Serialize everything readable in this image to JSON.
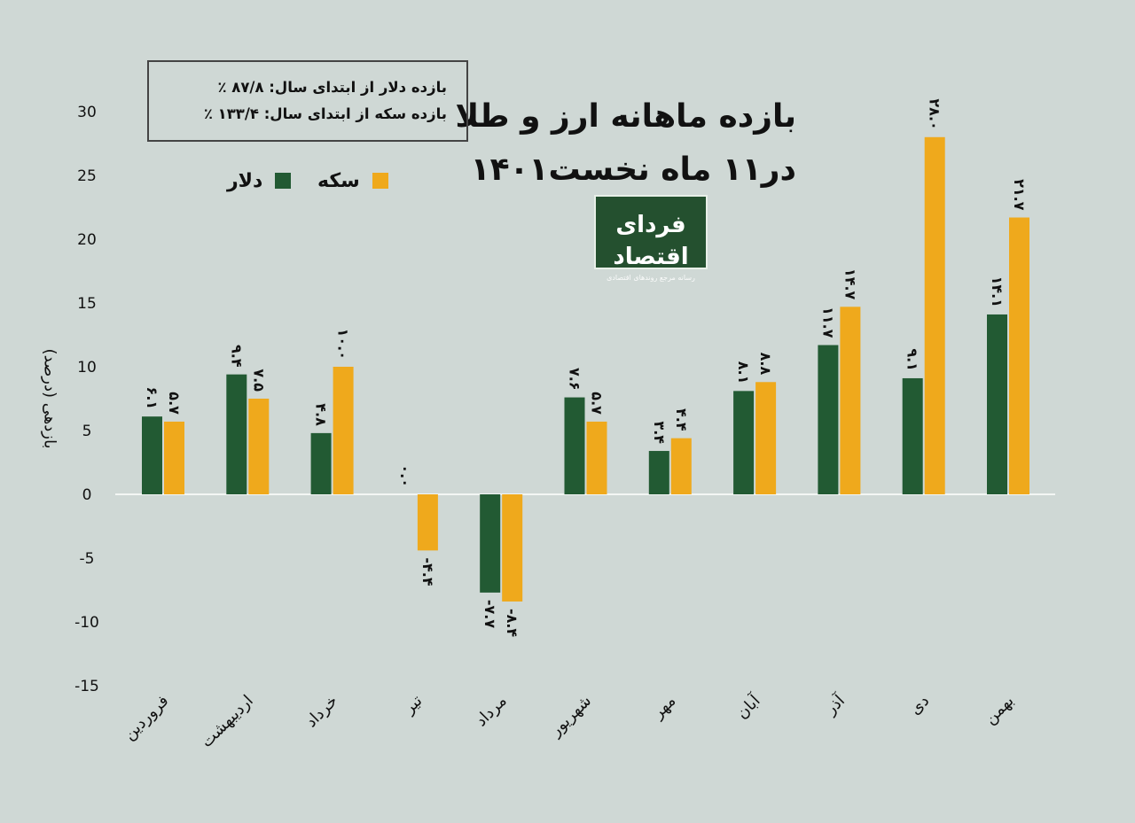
{
  "title_lines": [
    "بازده ماهانه ارز و طلا",
    "در۱۱ ماه نخست۱۴۰۱"
  ],
  "info_box": {
    "dollar_ytd": "بازده دلار از ابتدای سال: ۸۷/۸ ٪",
    "coin_ytd": "بازده سکه از ابتدای سال: ۱۳۳/۴ ٪"
  },
  "logo": {
    "name": "فردای اقتصاد",
    "tagline": "رسانه مرجع روندهای اقتصادی"
  },
  "colors": {
    "dollar": "#225a33",
    "coin": "#efa91c",
    "background": "#cfd8d5"
  },
  "chart_data": {
    "type": "bar",
    "title": "بازده ماهانه ارز و طلا در۱۱ ماه نخست۱۴۰۱",
    "ylabel": "بازدهی (درصد)",
    "xlabel": "",
    "ylim": [
      -15,
      30
    ],
    "yticks": [
      30,
      25,
      20,
      15,
      10,
      5,
      0,
      -5,
      -10,
      -15
    ],
    "ytick_labels": [
      "30",
      "25",
      "20",
      "15",
      "10",
      "5",
      "0",
      "-5",
      "-10",
      "-15"
    ],
    "categories": [
      "فروردین",
      "اردیبهشت",
      "خرداد",
      "تیر",
      "مرداد",
      "شهریور",
      "مهر",
      "آبان",
      "آذر",
      "دی",
      "بهمن"
    ],
    "series": [
      {
        "name": "دلار",
        "color": "#225a33",
        "values": [
          6.1,
          9.4,
          4.8,
          0.0,
          -7.7,
          7.6,
          3.4,
          8.1,
          11.7,
          9.1,
          14.1
        ],
        "labels": [
          "۶.۱",
          "۹.۴",
          "۴.۸",
          "۰.۰",
          "-۷.۷",
          "۷.۶",
          "۳.۴",
          "۸.۱",
          "۱۱.۷",
          "۹.۱",
          "۱۴.۱"
        ]
      },
      {
        "name": "سکه",
        "color": "#efa91c",
        "values": [
          5.7,
          7.5,
          10.0,
          -4.4,
          -8.4,
          5.7,
          4.4,
          8.8,
          14.7,
          28.0,
          21.7
        ],
        "labels": [
          "۵.۷",
          "۷.۵",
          "۱۰.۰",
          "-۴.۴",
          "-۸.۴",
          "۵.۷",
          "۴.۴",
          "۸.۸",
          "۱۴.۷",
          "۲۸.۰",
          "۲۱.۷"
        ]
      }
    ],
    "legend": [
      "دلار",
      "سکه"
    ],
    "grid": false,
    "legend_position": "top-left"
  }
}
